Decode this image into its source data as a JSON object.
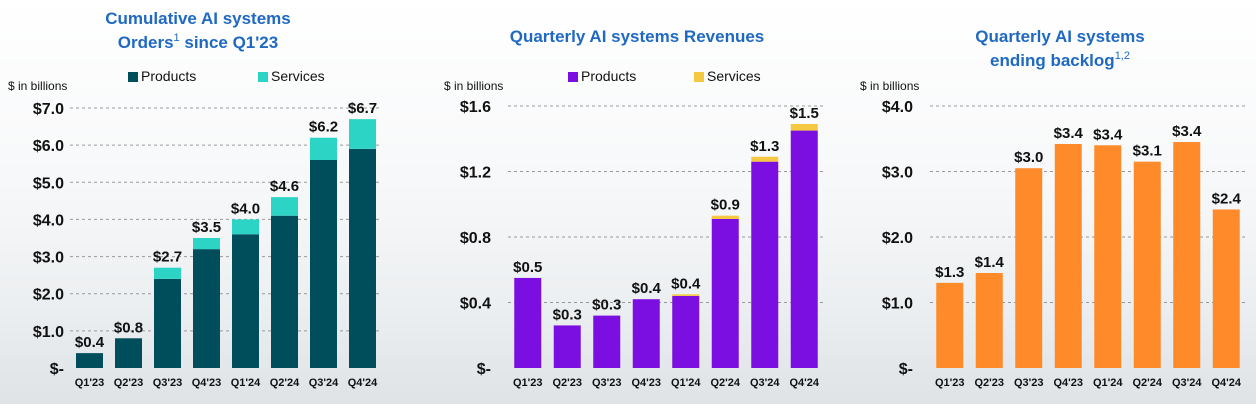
{
  "colors": {
    "title": "#1f69c3",
    "text": "#111111",
    "grid": "#9a9a9a",
    "products_teal": "#004d5c",
    "services_cyan": "#2bd4c4",
    "products_purple": "#7b0ee0",
    "services_yellow": "#f5c842",
    "backlog_orange": "#ff8a2a"
  },
  "chart_data": [
    {
      "type": "bar",
      "stacked": true,
      "title_lines": [
        "Cumulative AI systems",
        "Orders"
      ],
      "title_sup": "1",
      "title_suffix": " since Q1'23",
      "unit_label": "$ in billions",
      "categories": [
        "Q1'23",
        "Q2'23",
        "Q3'23",
        "Q4'23",
        "Q1'24",
        "Q2'24",
        "Q3'24",
        "Q4'24"
      ],
      "series": [
        {
          "name": "Products",
          "color_key": "products_teal",
          "values": [
            0.4,
            0.8,
            2.4,
            3.2,
            3.6,
            4.1,
            5.6,
            5.9
          ]
        },
        {
          "name": "Services",
          "color_key": "services_cyan",
          "values": [
            0.0,
            0.0,
            0.3,
            0.3,
            0.4,
            0.5,
            0.6,
            0.8
          ]
        }
      ],
      "totals": [
        "$0.4",
        "$0.8",
        "$2.7",
        "$3.5",
        "$4.0",
        "$4.6",
        "$6.2",
        "$6.7"
      ],
      "ylim": [
        0,
        7
      ],
      "yticks": [
        0,
        1,
        2,
        3,
        4,
        5,
        6,
        7
      ],
      "ytick_labels": [
        "$-",
        "$1.0",
        "$2.0",
        "$3.0",
        "$4.0",
        "$5.0",
        "$6.0",
        "$7.0"
      ],
      "legend": "top",
      "grid": true
    },
    {
      "type": "bar",
      "stacked": true,
      "title_lines": [
        "Quarterly AI systems Revenues"
      ],
      "unit_label": "$ in billions",
      "categories": [
        "Q1'23",
        "Q2'23",
        "Q3'23",
        "Q4'23",
        "Q1'24",
        "Q2'24",
        "Q3'24",
        "Q4'24"
      ],
      "series": [
        {
          "name": "Products",
          "color_key": "products_purple",
          "values": [
            0.55,
            0.26,
            0.32,
            0.42,
            0.44,
            0.91,
            1.26,
            1.45
          ]
        },
        {
          "name": "Services",
          "color_key": "services_yellow",
          "values": [
            0.0,
            0.0,
            0.0,
            0.0,
            0.01,
            0.02,
            0.03,
            0.04
          ]
        }
      ],
      "totals": [
        "$0.5",
        "$0.3",
        "$0.3",
        "$0.4",
        "$0.4",
        "$0.9",
        "$1.3",
        "$1.5"
      ],
      "ylim": [
        0,
        1.6
      ],
      "yticks": [
        0,
        0.4,
        0.8,
        1.2,
        1.6
      ],
      "ytick_labels": [
        "$-",
        "$0.4",
        "$0.8",
        "$1.2",
        "$1.6"
      ],
      "legend": "top",
      "grid": true
    },
    {
      "type": "bar",
      "stacked": false,
      "title_lines": [
        "Quarterly AI systems",
        "ending backlog"
      ],
      "title_sup": "1,2",
      "unit_label": "$ in billions",
      "categories": [
        "Q1'23",
        "Q2'23",
        "Q3'23",
        "Q4'23",
        "Q1'24",
        "Q2'24",
        "Q3'24",
        "Q4'24"
      ],
      "series": [
        {
          "name": "",
          "color_key": "backlog_orange",
          "values": [
            1.3,
            1.45,
            3.05,
            3.42,
            3.4,
            3.15,
            3.45,
            2.42
          ]
        }
      ],
      "totals": [
        "$1.3",
        "$1.4",
        "$3.0",
        "$3.4",
        "$3.4",
        "$3.1",
        "$3.4",
        "$2.4"
      ],
      "ylim": [
        0,
        4
      ],
      "yticks": [
        0,
        1,
        2,
        3,
        4
      ],
      "ytick_labels": [
        "$-",
        "$1.0",
        "$2.0",
        "$3.0",
        "$4.0"
      ],
      "legend": "none",
      "grid": true
    }
  ]
}
